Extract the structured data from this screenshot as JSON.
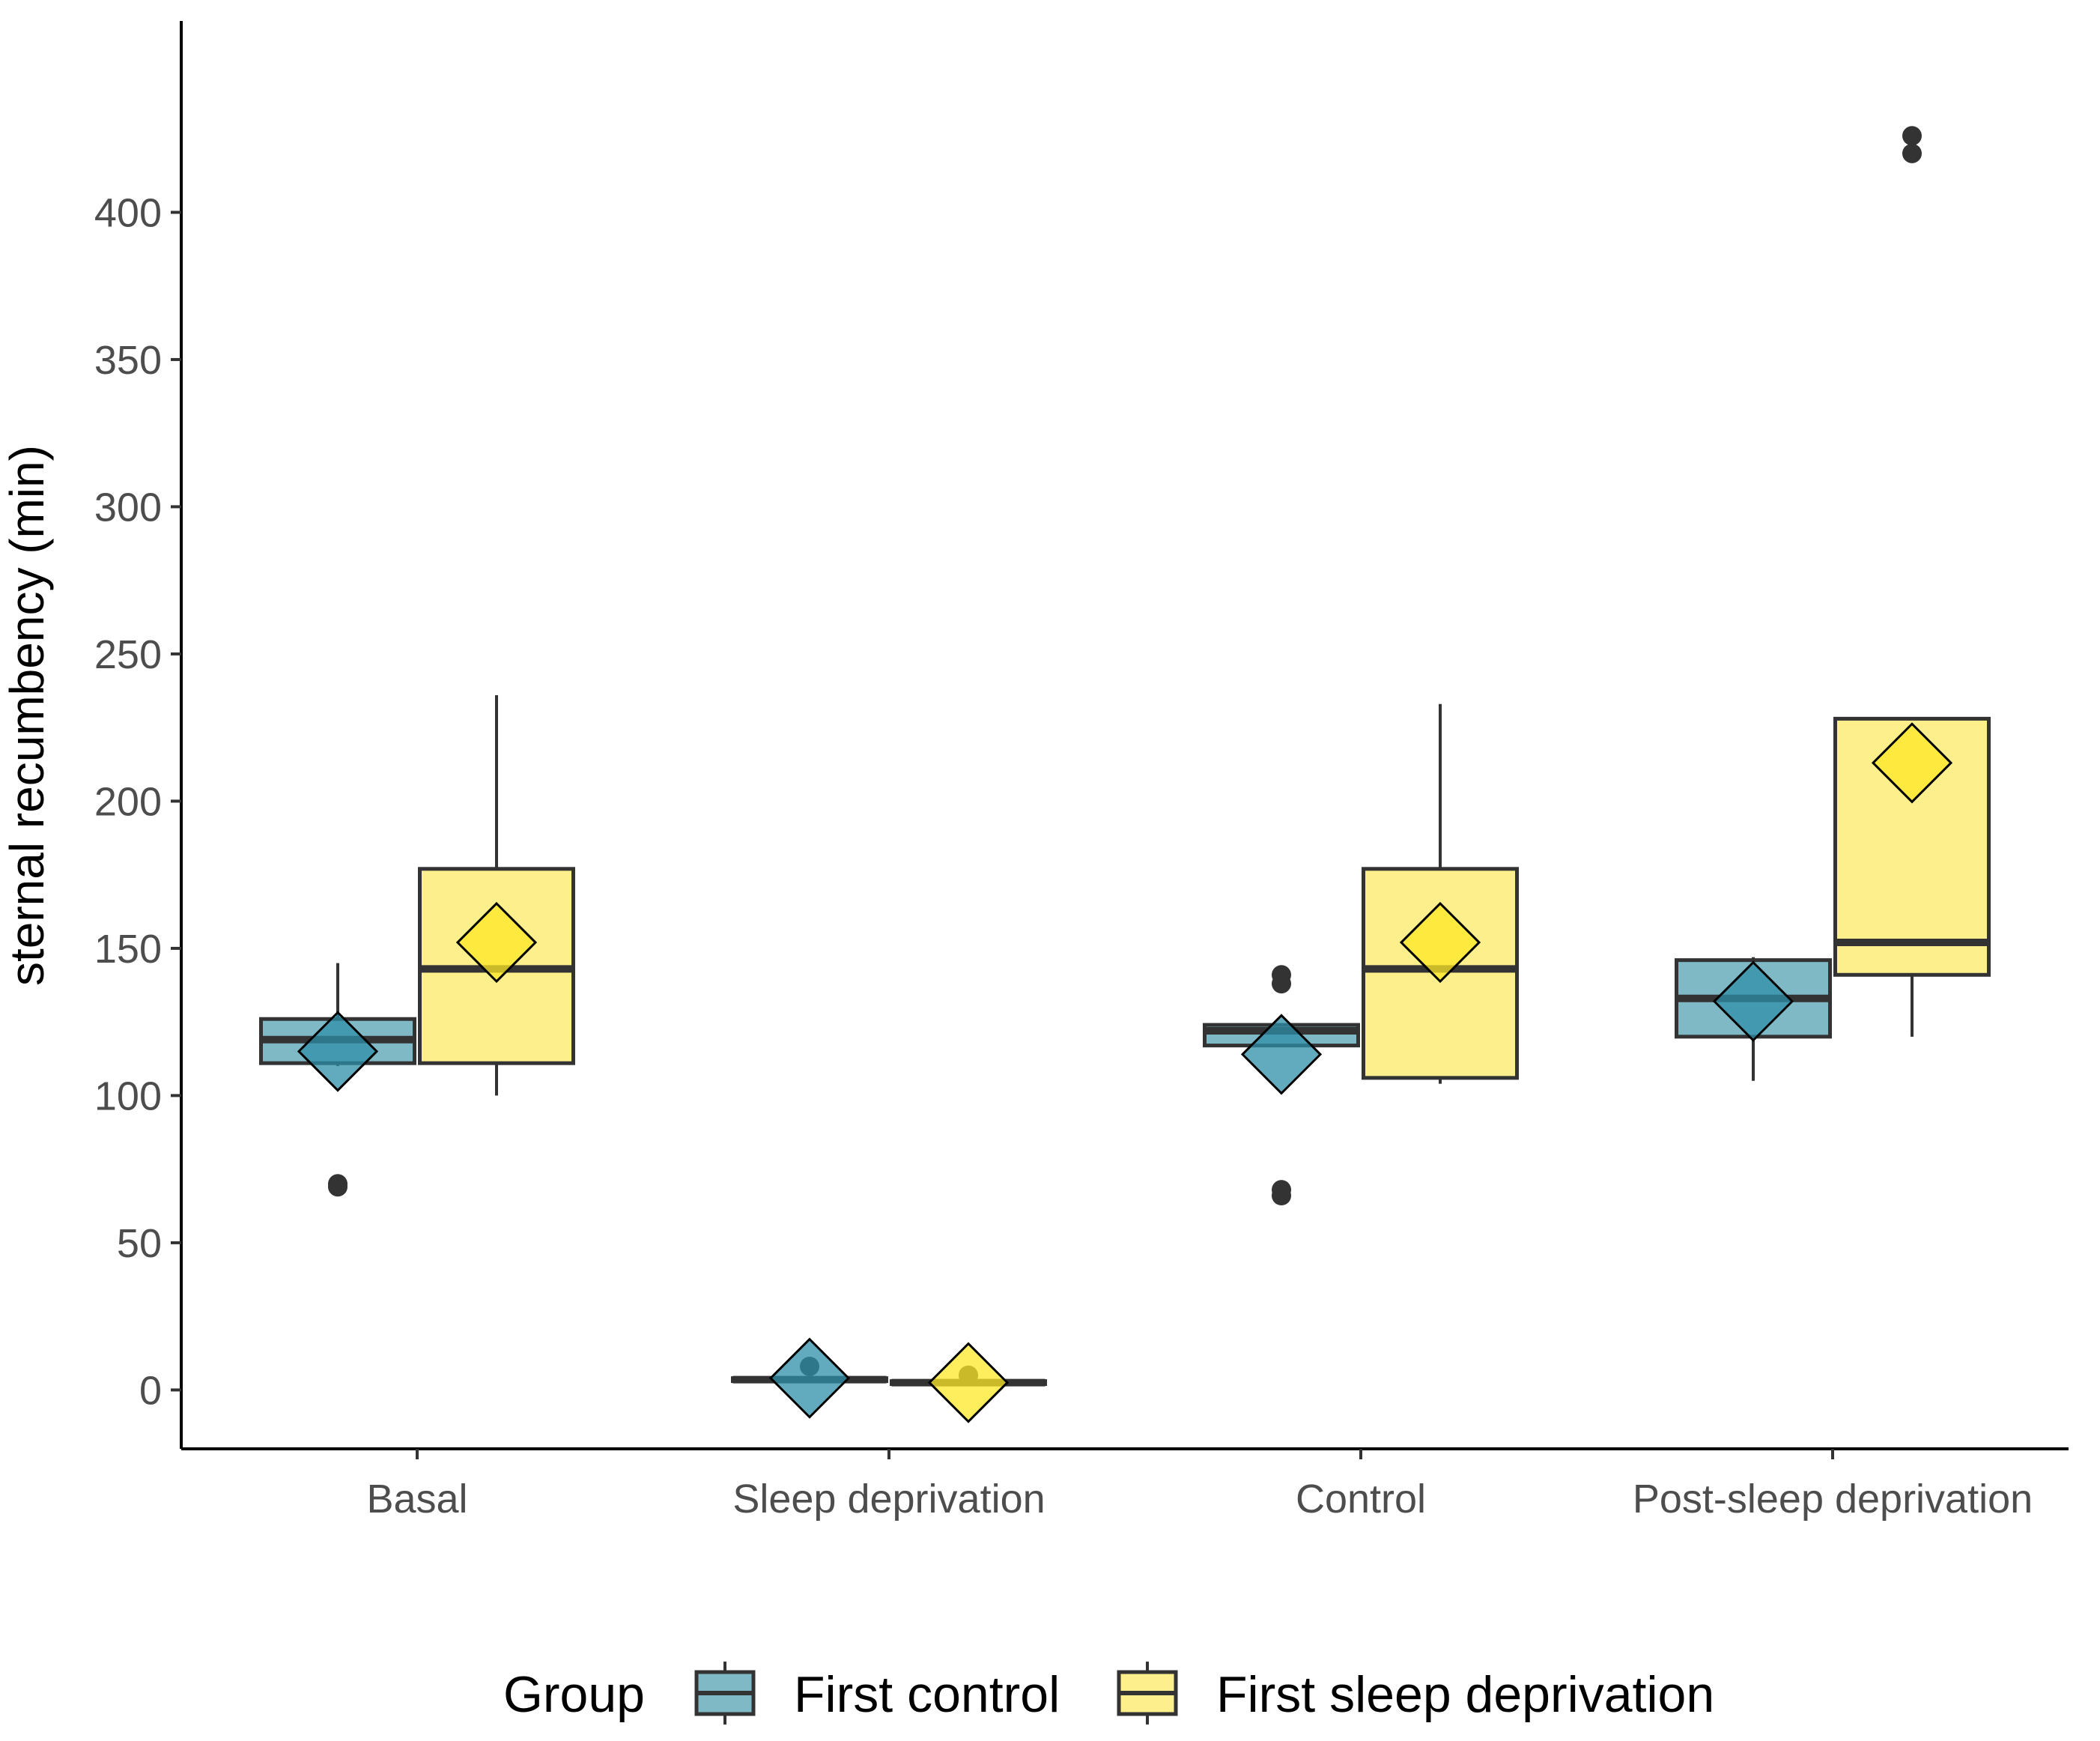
{
  "chart_data": {
    "type": "box",
    "title": "",
    "xlabel": "",
    "ylabel": "sternal recumbency (min)",
    "ylim": [
      -20,
      465
    ],
    "yticks": [
      0,
      50,
      100,
      150,
      200,
      250,
      300,
      350,
      400
    ],
    "grid": false,
    "legend_position": "bottom",
    "legend_title": "Group",
    "categories": [
      "Basal",
      "Sleep deprivation",
      "Control",
      "Post-sleep deprivation"
    ],
    "series": [
      {
        "name": "First control",
        "color": "#7FB9C6",
        "mean_color": "#2E8FA8",
        "boxes": [
          {
            "category": "Basal",
            "whisker_low": 110,
            "q1": 111,
            "median": 119,
            "q3": 126,
            "whisker_high": 145,
            "mean": 115,
            "outliers": [
              69,
              70
            ]
          },
          {
            "category": "Sleep deprivation",
            "whisker_low": 3,
            "q1": 3,
            "median": 3.5,
            "q3": 4,
            "whisker_high": 4,
            "mean": 4,
            "outliers": [
              8
            ]
          },
          {
            "category": "Control",
            "whisker_low": 117,
            "q1": 117,
            "median": 122,
            "q3": 124,
            "whisker_high": 124,
            "mean": 114,
            "outliers": [
              66,
              68,
              138,
              141
            ]
          },
          {
            "category": "Post-sleep deprivation",
            "whisker_low": 105,
            "q1": 120,
            "median": 133,
            "q3": 146,
            "whisker_high": 147,
            "mean": 132,
            "outliers": []
          }
        ]
      },
      {
        "name": "First sleep deprivation",
        "color": "#FDEF8C",
        "mean_color": "#FDE725",
        "boxes": [
          {
            "category": "Basal",
            "whisker_low": 100,
            "q1": 111,
            "median": 143,
            "q3": 177,
            "whisker_high": 236,
            "mean": 152,
            "outliers": []
          },
          {
            "category": "Sleep deprivation",
            "whisker_low": 2,
            "q1": 2,
            "median": 2.5,
            "q3": 3,
            "whisker_high": 3,
            "mean": 2.5,
            "outliers": [
              5
            ]
          },
          {
            "category": "Control",
            "whisker_low": 104,
            "q1": 106,
            "median": 143,
            "q3": 177,
            "whisker_high": 233,
            "mean": 152,
            "outliers": []
          },
          {
            "category": "Post-sleep deprivation",
            "whisker_low": 120,
            "q1": 141,
            "median": 152,
            "q3": 228,
            "whisker_high": 228,
            "mean": 213,
            "outliers": [
              420,
              426
            ]
          }
        ]
      }
    ]
  }
}
